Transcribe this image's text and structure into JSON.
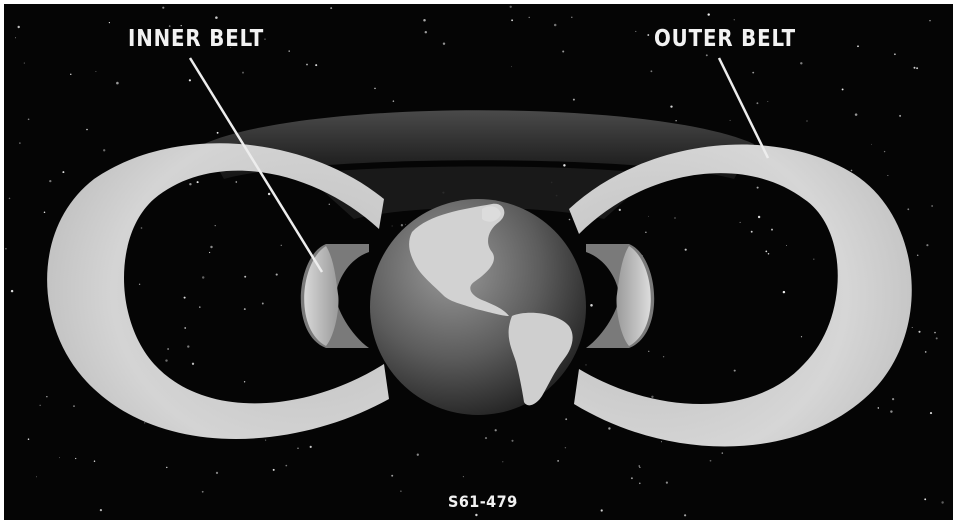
{
  "labels": {
    "inner_belt": "INNER BELT",
    "outer_belt": "OUTER BELT",
    "figure_id": "S61-479"
  },
  "colors": {
    "space": "#050505",
    "belt_light": "#d6d6d6",
    "belt_shadow": "#8a8a8a",
    "earth_ocean": "#5e5e5e",
    "land": "#d9d9d9",
    "text": "#f2f2f2"
  }
}
